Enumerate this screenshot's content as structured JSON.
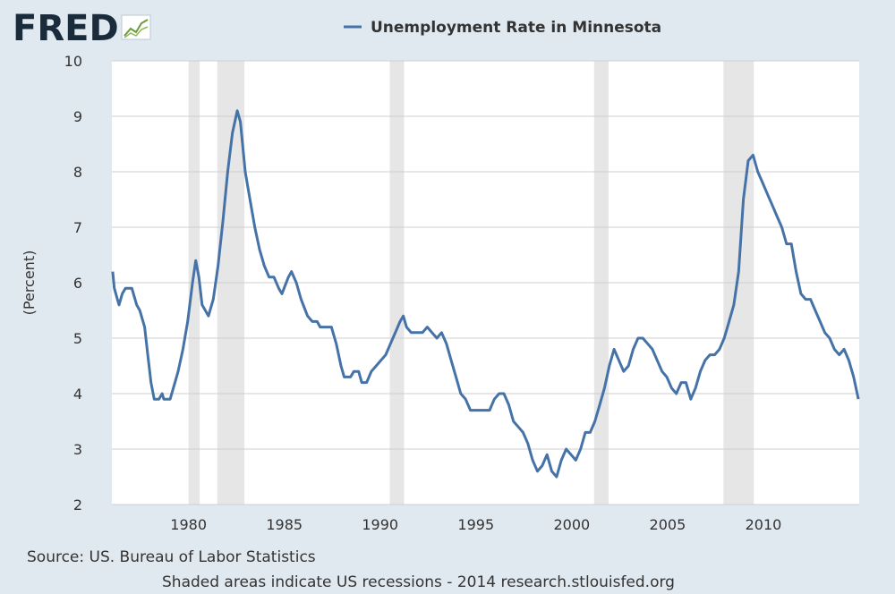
{
  "branding": {
    "logo_text": "FRED",
    "logo_icon": "line-chart-icon",
    "colors": {
      "logo": "#1a2b3c",
      "series": "#4572a7",
      "background": "#e1e9f0",
      "recession": "#e6e6e6",
      "grid": "#cfcfcf"
    }
  },
  "chart_data": {
    "type": "line",
    "legend": "Unemployment Rate in Minnesota",
    "legend_position": "top-center",
    "ylabel": "(Percent)",
    "xlabel": "",
    "ylim": [
      2,
      10
    ],
    "xlim": [
      "1976-01",
      "2014-12"
    ],
    "yticks": [
      2,
      3,
      4,
      5,
      6,
      7,
      8,
      9,
      10
    ],
    "xticks": [
      1980,
      1985,
      1990,
      1995,
      2000,
      2005,
      2010
    ],
    "grid": "horizontal",
    "recessions": [
      {
        "start": "1980-01",
        "end": "1980-07"
      },
      {
        "start": "1981-07",
        "end": "1982-11"
      },
      {
        "start": "1990-07",
        "end": "1991-03"
      },
      {
        "start": "2001-03",
        "end": "2001-11"
      },
      {
        "start": "2007-12",
        "end": "2009-06"
      }
    ],
    "series": [
      {
        "name": "Unemployment Rate in Minnesota",
        "points": [
          [
            "1976-01",
            6.2
          ],
          [
            "1976-02",
            5.9
          ],
          [
            "1976-04",
            5.7
          ],
          [
            "1976-05",
            5.6
          ],
          [
            "1976-07",
            5.8
          ],
          [
            "1976-09",
            5.9
          ],
          [
            "1977-01",
            5.9
          ],
          [
            "1977-04",
            5.6
          ],
          [
            "1977-06",
            5.5
          ],
          [
            "1977-09",
            5.2
          ],
          [
            "1977-11",
            4.7
          ],
          [
            "1978-01",
            4.2
          ],
          [
            "1978-03",
            3.9
          ],
          [
            "1978-06",
            3.9
          ],
          [
            "1978-08",
            4.0
          ],
          [
            "1978-09",
            3.9
          ],
          [
            "1979-01",
            3.9
          ],
          [
            "1979-04",
            4.2
          ],
          [
            "1979-06",
            4.4
          ],
          [
            "1979-09",
            4.8
          ],
          [
            "1979-12",
            5.3
          ],
          [
            "1980-03",
            6.0
          ],
          [
            "1980-05",
            6.4
          ],
          [
            "1980-07",
            6.1
          ],
          [
            "1980-09",
            5.6
          ],
          [
            "1980-11",
            5.5
          ],
          [
            "1981-01",
            5.4
          ],
          [
            "1981-04",
            5.7
          ],
          [
            "1981-07",
            6.3
          ],
          [
            "1981-10",
            7.1
          ],
          [
            "1982-01",
            8.0
          ],
          [
            "1982-04",
            8.7
          ],
          [
            "1982-07",
            9.1
          ],
          [
            "1982-09",
            8.9
          ],
          [
            "1982-12",
            8.0
          ],
          [
            "1983-03",
            7.5
          ],
          [
            "1983-06",
            7.0
          ],
          [
            "1983-09",
            6.6
          ],
          [
            "1983-12",
            6.3
          ],
          [
            "1984-03",
            6.1
          ],
          [
            "1984-06",
            6.1
          ],
          [
            "1984-09",
            5.9
          ],
          [
            "1984-11",
            5.8
          ],
          [
            "1985-03",
            6.1
          ],
          [
            "1985-05",
            6.2
          ],
          [
            "1985-08",
            6.0
          ],
          [
            "1985-11",
            5.7
          ],
          [
            "1986-03",
            5.4
          ],
          [
            "1986-06",
            5.3
          ],
          [
            "1986-09",
            5.3
          ],
          [
            "1986-11",
            5.2
          ],
          [
            "1987-03",
            5.2
          ],
          [
            "1987-06",
            5.2
          ],
          [
            "1987-09",
            4.9
          ],
          [
            "1987-12",
            4.5
          ],
          [
            "1988-02",
            4.3
          ],
          [
            "1988-06",
            4.3
          ],
          [
            "1988-08",
            4.4
          ],
          [
            "1988-11",
            4.4
          ],
          [
            "1989-01",
            4.2
          ],
          [
            "1989-04",
            4.2
          ],
          [
            "1989-07",
            4.4
          ],
          [
            "1989-10",
            4.5
          ],
          [
            "1990-01",
            4.6
          ],
          [
            "1990-04",
            4.7
          ],
          [
            "1990-07",
            4.9
          ],
          [
            "1990-10",
            5.1
          ],
          [
            "1991-01",
            5.3
          ],
          [
            "1991-03",
            5.4
          ],
          [
            "1991-05",
            5.2
          ],
          [
            "1991-08",
            5.1
          ],
          [
            "1991-11",
            5.1
          ],
          [
            "1992-03",
            5.1
          ],
          [
            "1992-06",
            5.2
          ],
          [
            "1992-09",
            5.1
          ],
          [
            "1992-12",
            5.0
          ],
          [
            "1993-03",
            5.1
          ],
          [
            "1993-06",
            4.9
          ],
          [
            "1993-09",
            4.6
          ],
          [
            "1993-12",
            4.3
          ],
          [
            "1994-03",
            4.0
          ],
          [
            "1994-06",
            3.9
          ],
          [
            "1994-09",
            3.7
          ],
          [
            "1994-12",
            3.7
          ],
          [
            "1995-03",
            3.7
          ],
          [
            "1995-06",
            3.7
          ],
          [
            "1995-09",
            3.7
          ],
          [
            "1995-12",
            3.9
          ],
          [
            "1996-03",
            4.0
          ],
          [
            "1996-06",
            4.0
          ],
          [
            "1996-09",
            3.8
          ],
          [
            "1996-12",
            3.5
          ],
          [
            "1997-03",
            3.4
          ],
          [
            "1997-06",
            3.3
          ],
          [
            "1997-09",
            3.1
          ],
          [
            "1997-12",
            2.8
          ],
          [
            "1998-03",
            2.6
          ],
          [
            "1998-06",
            2.7
          ],
          [
            "1998-09",
            2.9
          ],
          [
            "1998-12",
            2.6
          ],
          [
            "1999-03",
            2.5
          ],
          [
            "1999-06",
            2.8
          ],
          [
            "1999-09",
            3.0
          ],
          [
            "1999-12",
            2.9
          ],
          [
            "2000-03",
            2.8
          ],
          [
            "2000-06",
            3.0
          ],
          [
            "2000-09",
            3.3
          ],
          [
            "2000-12",
            3.3
          ],
          [
            "2001-03",
            3.5
          ],
          [
            "2001-06",
            3.8
          ],
          [
            "2001-09",
            4.1
          ],
          [
            "2001-12",
            4.5
          ],
          [
            "2002-03",
            4.8
          ],
          [
            "2002-06",
            4.6
          ],
          [
            "2002-09",
            4.4
          ],
          [
            "2002-12",
            4.5
          ],
          [
            "2003-03",
            4.8
          ],
          [
            "2003-06",
            5.0
          ],
          [
            "2003-09",
            5.0
          ],
          [
            "2003-12",
            4.9
          ],
          [
            "2004-03",
            4.8
          ],
          [
            "2004-06",
            4.6
          ],
          [
            "2004-09",
            4.4
          ],
          [
            "2004-12",
            4.3
          ],
          [
            "2005-03",
            4.1
          ],
          [
            "2005-06",
            4.0
          ],
          [
            "2005-09",
            4.2
          ],
          [
            "2005-12",
            4.2
          ],
          [
            "2006-03",
            3.9
          ],
          [
            "2006-06",
            4.1
          ],
          [
            "2006-09",
            4.4
          ],
          [
            "2006-12",
            4.6
          ],
          [
            "2007-03",
            4.7
          ],
          [
            "2007-06",
            4.7
          ],
          [
            "2007-09",
            4.8
          ],
          [
            "2007-12",
            5.0
          ],
          [
            "2008-03",
            5.3
          ],
          [
            "2008-06",
            5.6
          ],
          [
            "2008-09",
            6.2
          ],
          [
            "2008-12",
            7.5
          ],
          [
            "2009-03",
            8.2
          ],
          [
            "2009-06",
            8.3
          ],
          [
            "2009-09",
            8.0
          ],
          [
            "2009-12",
            7.8
          ],
          [
            "2010-03",
            7.6
          ],
          [
            "2010-06",
            7.4
          ],
          [
            "2010-09",
            7.2
          ],
          [
            "2010-12",
            7.0
          ],
          [
            "2011-03",
            6.7
          ],
          [
            "2011-06",
            6.7
          ],
          [
            "2011-09",
            6.2
          ],
          [
            "2011-12",
            5.8
          ],
          [
            "2012-03",
            5.7
          ],
          [
            "2012-06",
            5.7
          ],
          [
            "2012-09",
            5.5
          ],
          [
            "2012-12",
            5.3
          ],
          [
            "2013-03",
            5.1
          ],
          [
            "2013-06",
            5.0
          ],
          [
            "2013-09",
            4.8
          ],
          [
            "2013-12",
            4.7
          ],
          [
            "2014-03",
            4.8
          ],
          [
            "2014-06",
            4.6
          ],
          [
            "2014-09",
            4.3
          ],
          [
            "2014-12",
            3.9
          ]
        ]
      }
    ]
  },
  "footer": {
    "source": "Source: US. Bureau of Labor Statistics",
    "note": "Shaded areas indicate US recessions - 2014 research.stlouisfed.org"
  }
}
